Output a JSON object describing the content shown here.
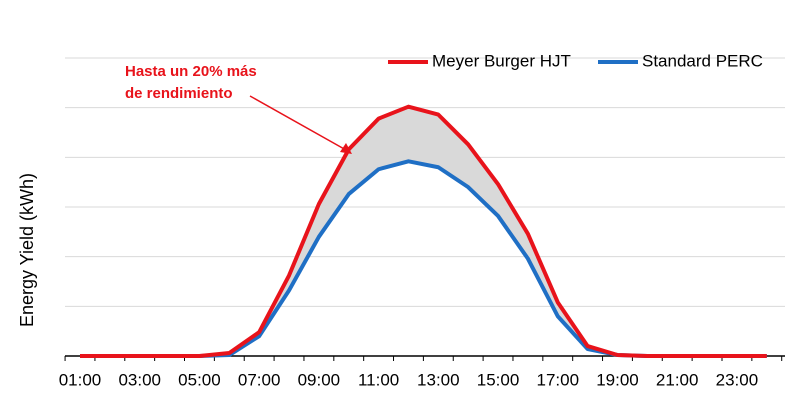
{
  "chart_data": {
    "type": "line",
    "y_label": "Energy Yield (kWh)",
    "annotation": [
      "Hasta un 20% más",
      "de rendimiento"
    ],
    "categories": [
      "01:00",
      null,
      "03:00",
      null,
      "05:00",
      null,
      "07:00",
      null,
      "09:00",
      null,
      "11:00",
      null,
      "13:00",
      null,
      "15:00",
      null,
      "17:00",
      null,
      "19:00",
      null,
      "21:00",
      null,
      "23:00",
      null
    ],
    "series": [
      {
        "name": "Meyer Burger HJT",
        "color": "#e8131b",
        "values": [
          0,
          0,
          0,
          0,
          0,
          0.06,
          0.48,
          1.62,
          3.06,
          4.16,
          4.78,
          5.02,
          4.86,
          4.26,
          3.46,
          2.46,
          1.08,
          0.2,
          0.02,
          0,
          0,
          0,
          0,
          0
        ]
      },
      {
        "name": "Standard PERC",
        "color": "#1f6fc5",
        "values": [
          0,
          0,
          0,
          0,
          0,
          0.02,
          0.4,
          1.32,
          2.4,
          3.26,
          3.76,
          3.92,
          3.8,
          3.4,
          2.82,
          1.96,
          0.8,
          0.14,
          0.02,
          0,
          0,
          0,
          0,
          0
        ]
      }
    ],
    "fill_between_color": "#d9d9d9",
    "ylim": [
      0,
      6
    ],
    "ygrid": [
      1,
      2,
      3,
      4,
      5,
      6
    ],
    "grid": true
  }
}
